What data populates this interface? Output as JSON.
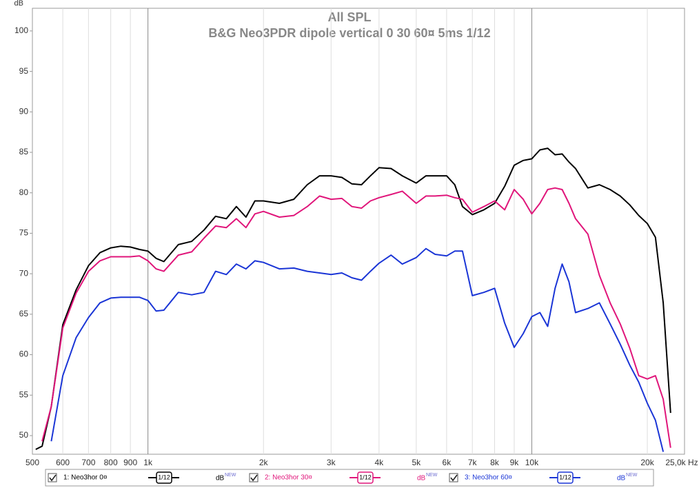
{
  "chart_data": {
    "type": "line",
    "title": "All SPL",
    "subtitle": "B&G Neo3PDR dipole vertical 0 30 60¤ 5ms 1/12",
    "ylabel": "dB",
    "log_x": true,
    "grid": "x",
    "xlim": [
      500,
      25000
    ],
    "ylim": [
      47.7,
      102.8
    ],
    "xticks": [
      500,
      600,
      700,
      800,
      900,
      {
        "value": 1000,
        "label": "1k"
      },
      {
        "value": 2000,
        "label": "2k"
      },
      {
        "value": 3000,
        "label": "3k"
      },
      {
        "value": 4000,
        "label": "4k"
      },
      {
        "value": 5000,
        "label": "5k"
      },
      {
        "value": 6000,
        "label": "6k"
      },
      {
        "value": 7000,
        "label": "7k"
      },
      {
        "value": 8000,
        "label": "8k"
      },
      {
        "value": 9000,
        "label": "9k"
      },
      {
        "value": 10000,
        "label": "10k"
      },
      {
        "value": 20000,
        "label": "20k"
      },
      {
        "value": 25000,
        "label": "25,0k Hz"
      }
    ],
    "yticks": [
      50,
      55,
      60,
      65,
      70,
      75,
      80,
      85,
      90,
      95,
      100
    ],
    "smoothing_label": "1/12",
    "unit_label": "dB",
    "unit_badge": "NEW",
    "x": [
      510,
      530,
      560,
      600,
      650,
      700,
      750,
      800,
      850,
      900,
      950,
      1000,
      1050,
      1100,
      1200,
      1300,
      1400,
      1500,
      1600,
      1700,
      1800,
      1900,
      2000,
      2200,
      2400,
      2600,
      2800,
      3000,
      3200,
      3400,
      3600,
      3800,
      4000,
      4300,
      4600,
      5000,
      5300,
      5600,
      6000,
      6300,
      6600,
      7000,
      7500,
      8000,
      8500,
      9000,
      9500,
      10000,
      10500,
      11000,
      11500,
      12000,
      12500,
      13000,
      14000,
      15000,
      16000,
      17000,
      18000,
      19000,
      20000,
      21000,
      22000,
      23000
    ],
    "series": [
      {
        "name": "1: Neo3hor 0¤",
        "color": "#000000",
        "values": [
          48.3,
          48.7,
          53.6,
          63.7,
          68.0,
          71.0,
          72.6,
          73.2,
          73.4,
          73.3,
          73.0,
          72.8,
          71.9,
          71.5,
          73.6,
          74.0,
          75.4,
          77.1,
          76.8,
          78.3,
          77.0,
          79.0,
          79.0,
          78.7,
          79.2,
          81.0,
          82.1,
          82.1,
          81.9,
          81.1,
          81.0,
          82.1,
          83.1,
          83.0,
          82.1,
          81.2,
          82.1,
          82.1,
          82.1,
          81.0,
          78.3,
          77.3,
          77.9,
          78.7,
          80.8,
          83.4,
          84.0,
          84.2,
          85.3,
          85.5,
          84.7,
          84.8,
          83.8,
          83.0,
          80.6,
          81.0,
          80.4,
          79.6,
          78.5,
          77.2,
          76.2,
          74.5,
          66.4,
          52.8
        ]
      },
      {
        "name": "2: Neo3hor 30¤",
        "color": "#e0157a",
        "values": [
          null,
          49.3,
          53.6,
          63.3,
          67.6,
          70.3,
          71.6,
          72.1,
          72.1,
          72.1,
          72.2,
          71.6,
          70.6,
          70.3,
          72.3,
          72.7,
          74.4,
          75.9,
          75.7,
          76.8,
          75.7,
          77.4,
          77.7,
          77.0,
          77.2,
          78.3,
          79.6,
          79.2,
          79.3,
          78.3,
          78.1,
          79.0,
          79.4,
          79.8,
          80.2,
          78.7,
          79.6,
          79.6,
          79.7,
          79.4,
          79.2,
          77.6,
          78.3,
          79.0,
          77.9,
          80.4,
          79.2,
          77.4,
          78.7,
          80.4,
          80.6,
          80.4,
          78.7,
          76.8,
          74.9,
          69.8,
          66.4,
          63.8,
          60.8,
          57.4,
          57.0,
          57.4,
          54.5,
          48.5
        ]
      },
      {
        "name": "3: Neo3hor 60¤",
        "color": "#1a35d6",
        "values": [
          null,
          null,
          49.3,
          57.4,
          62.1,
          64.6,
          66.4,
          67.0,
          67.1,
          67.1,
          67.1,
          66.7,
          65.4,
          65.5,
          67.7,
          67.4,
          67.7,
          70.3,
          69.9,
          71.2,
          70.6,
          71.6,
          71.4,
          70.6,
          70.7,
          70.3,
          70.1,
          69.9,
          70.1,
          69.5,
          69.2,
          70.3,
          71.3,
          72.3,
          71.2,
          72.0,
          73.1,
          72.4,
          72.2,
          72.8,
          72.8,
          67.3,
          67.7,
          68.2,
          63.9,
          60.9,
          62.6,
          64.7,
          65.2,
          63.5,
          68.2,
          71.2,
          69.0,
          65.2,
          65.7,
          66.4,
          63.8,
          61.3,
          58.7,
          56.6,
          54.0,
          51.9,
          48.0,
          null
        ]
      }
    ]
  }
}
